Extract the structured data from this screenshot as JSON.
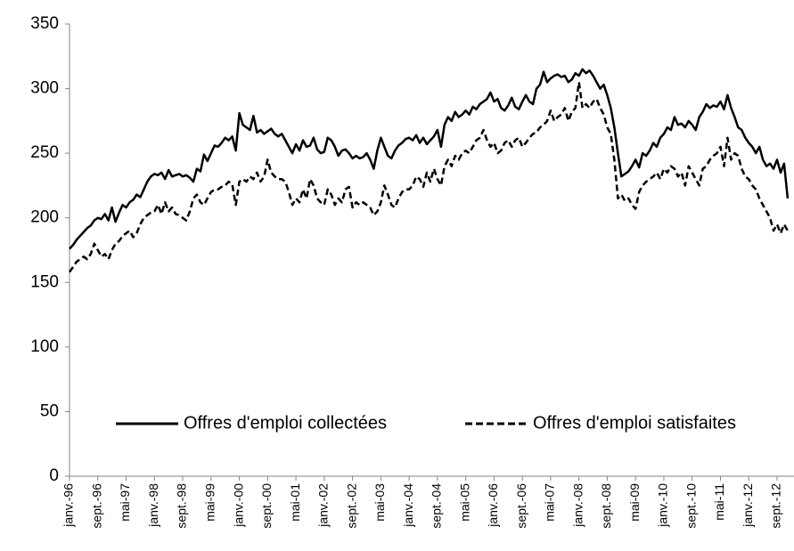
{
  "chart_data": {
    "type": "line",
    "categories": [
      "janv.-96",
      null,
      null,
      null,
      null,
      null,
      null,
      null,
      "sept.-96",
      null,
      null,
      null,
      null,
      null,
      null,
      null,
      "mai-97",
      null,
      null,
      null,
      null,
      null,
      null,
      null,
      "janv.-98",
      null,
      null,
      null,
      null,
      null,
      null,
      null,
      "sept.-98",
      null,
      null,
      null,
      null,
      null,
      null,
      null,
      "mai-99",
      null,
      null,
      null,
      null,
      null,
      null,
      null,
      "janv.-00",
      null,
      null,
      null,
      null,
      null,
      null,
      null,
      "sept.-00",
      null,
      null,
      null,
      null,
      null,
      null,
      null,
      "mai-01",
      null,
      null,
      null,
      null,
      null,
      null,
      null,
      "janv.-02",
      null,
      null,
      null,
      null,
      null,
      null,
      null,
      "sept.-02",
      null,
      null,
      null,
      null,
      null,
      null,
      null,
      "mai-03",
      null,
      null,
      null,
      null,
      null,
      null,
      null,
      "janv.-04",
      null,
      null,
      null,
      null,
      null,
      null,
      null,
      "sept.-04",
      null,
      null,
      null,
      null,
      null,
      null,
      null,
      "mai-05",
      null,
      null,
      null,
      null,
      null,
      null,
      null,
      "janv.-06",
      null,
      null,
      null,
      null,
      null,
      null,
      null,
      "sept.-06",
      null,
      null,
      null,
      null,
      null,
      null,
      null,
      "mai-07",
      null,
      null,
      null,
      null,
      null,
      null,
      null,
      "janv.-08",
      null,
      null,
      null,
      null,
      null,
      null,
      null,
      "sept.-08",
      null,
      null,
      null,
      null,
      null,
      null,
      null,
      "mai-09",
      null,
      null,
      null,
      null,
      null,
      null,
      null,
      "janv.-10",
      null,
      null,
      null,
      null,
      null,
      null,
      null,
      "sept.-10",
      null,
      null,
      null,
      null,
      null,
      null,
      null,
      "mai-11",
      null,
      null,
      null,
      null,
      null,
      null,
      null,
      "janv.-12",
      null,
      null,
      null,
      null,
      null,
      null,
      null,
      "sept.-12",
      null,
      null,
      null
    ],
    "series": [
      {
        "name": "Offres d'emploi collectées",
        "color": "#000000",
        "linestyle": "solid",
        "values": [
          176,
          179,
          183,
          186,
          189,
          192,
          194,
          198,
          200,
          199,
          203,
          198,
          208,
          197,
          204,
          210,
          208,
          212,
          214,
          218,
          216,
          222,
          228,
          232,
          234,
          233,
          235,
          230,
          237,
          232,
          233,
          234,
          232,
          233,
          231,
          228,
          238,
          236,
          249,
          244,
          250,
          256,
          255,
          258,
          262,
          260,
          263,
          252,
          281,
          272,
          270,
          268,
          279,
          266,
          268,
          265,
          267,
          269,
          265,
          263,
          265,
          260,
          255,
          250,
          257,
          252,
          260,
          255,
          256,
          262,
          253,
          250,
          251,
          262,
          260,
          255,
          248,
          252,
          253,
          250,
          246,
          248,
          246,
          247,
          250,
          245,
          238,
          252,
          262,
          255,
          248,
          246,
          252,
          256,
          258,
          261,
          262,
          260,
          264,
          258,
          262,
          257,
          260,
          263,
          268,
          255,
          272,
          278,
          275,
          282,
          278,
          280,
          283,
          280,
          286,
          284,
          288,
          290,
          292,
          297,
          290,
          292,
          285,
          283,
          287,
          293,
          286,
          284,
          290,
          295,
          290,
          288,
          300,
          303,
          313,
          305,
          308,
          310,
          311,
          309,
          310,
          305,
          307,
          312,
          310,
          315,
          312,
          314,
          310,
          305,
          300,
          303,
          295,
          285,
          270,
          250,
          232,
          234,
          236,
          240,
          245,
          239,
          250,
          248,
          252,
          258,
          255,
          262,
          265,
          270,
          268,
          278,
          272,
          273,
          270,
          275,
          272,
          268,
          278,
          282,
          288,
          285,
          287,
          286,
          290,
          284,
          295,
          285,
          278,
          270,
          268,
          262,
          258,
          255,
          250,
          255,
          245,
          240,
          242,
          238,
          245,
          235,
          242,
          215
        ]
      },
      {
        "name": "Offres d'emploi satisfaites",
        "color": "#000000",
        "linestyle": "dashed",
        "values": [
          158,
          162,
          166,
          168,
          170,
          168,
          172,
          180,
          175,
          170,
          172,
          168,
          175,
          180,
          182,
          186,
          188,
          190,
          185,
          188,
          195,
          200,
          202,
          204,
          205,
          210,
          203,
          212,
          205,
          208,
          203,
          202,
          200,
          198,
          205,
          215,
          218,
          212,
          210,
          215,
          220,
          222,
          222,
          224,
          225,
          228,
          226,
          210,
          228,
          230,
          228,
          232,
          230,
          235,
          228,
          232,
          245,
          235,
          232,
          230,
          230,
          228,
          220,
          210,
          215,
          212,
          222,
          215,
          230,
          225,
          215,
          212,
          210,
          222,
          218,
          210,
          215,
          212,
          222,
          224,
          208,
          212,
          210,
          212,
          210,
          208,
          202,
          205,
          212,
          225,
          218,
          210,
          208,
          215,
          220,
          222,
          222,
          225,
          232,
          230,
          224,
          235,
          228,
          238,
          230,
          225,
          240,
          245,
          240,
          248,
          245,
          250,
          252,
          250,
          255,
          260,
          262,
          268,
          260,
          255,
          258,
          250,
          252,
          258,
          260,
          255,
          260,
          262,
          255,
          258,
          262,
          265,
          266,
          270,
          272,
          275,
          283,
          275,
          278,
          280,
          285,
          275,
          282,
          285,
          305,
          285,
          288,
          285,
          290,
          292,
          285,
          280,
          270,
          265,
          245,
          215,
          218,
          213,
          215,
          210,
          207,
          220,
          225,
          228,
          230,
          232,
          235,
          230,
          238,
          235,
          240,
          238,
          232,
          235,
          225,
          240,
          235,
          230,
          225,
          238,
          240,
          245,
          248,
          250,
          255,
          240,
          262,
          245,
          250,
          248,
          238,
          232,
          230,
          225,
          222,
          215,
          210,
          205,
          200,
          190,
          195,
          188,
          195,
          190
        ]
      }
    ],
    "ylim": [
      0,
      350
    ],
    "yticks": [
      0,
      50,
      100,
      150,
      200,
      250,
      300,
      350
    ]
  }
}
